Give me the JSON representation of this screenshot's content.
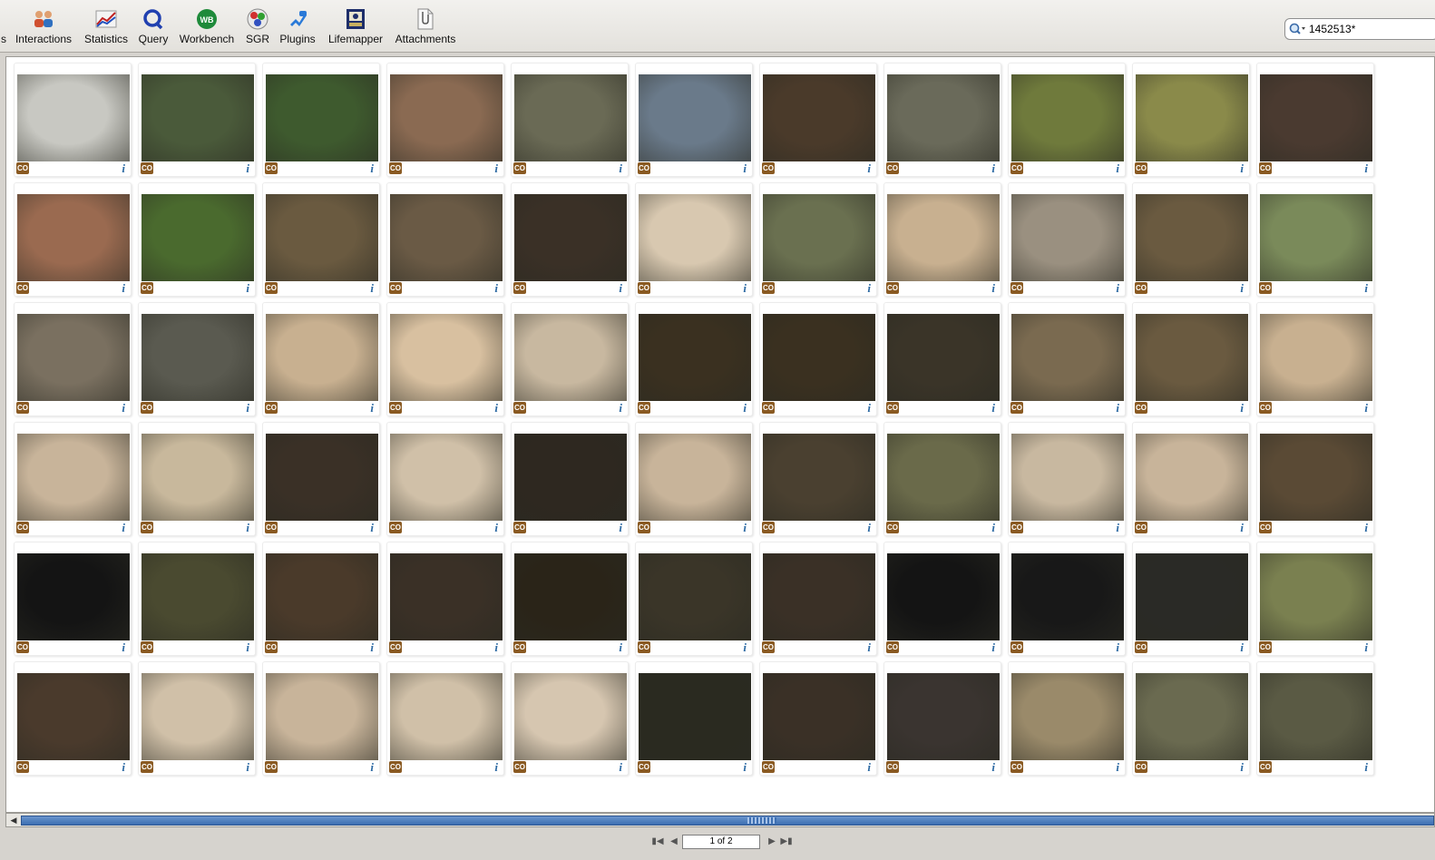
{
  "toolbar": {
    "buttons": [
      {
        "label": "s",
        "icon": "clipped-icon"
      },
      {
        "label": "Interactions",
        "icon": "interactions-icon"
      },
      {
        "label": "Statistics",
        "icon": "statistics-icon"
      },
      {
        "label": "Query",
        "icon": "query-icon"
      },
      {
        "label": "Workbench",
        "icon": "workbench-icon"
      },
      {
        "label": "SGR",
        "icon": "sgr-icon"
      },
      {
        "label": "Plugins",
        "icon": "plugins-icon"
      },
      {
        "label": "Lifemapper",
        "icon": "lifemapper-icon"
      },
      {
        "label": "Attachments",
        "icon": "attachments-icon"
      }
    ]
  },
  "search": {
    "value": "1452513*",
    "icon": "search-icon"
  },
  "grid": {
    "license_badge": "CO",
    "info_glyph": "i",
    "columns": 11,
    "rows": 6,
    "thumbnails": [
      [
        "#c8c8c2",
        "#4a5a3a",
        "#3e5a2e",
        "#8a6a52",
        "#6a6a55",
        "#6a7a8a",
        "#4a3a2a",
        "#6a6a5a",
        "#6f7a3c",
        "#8a8a4a",
        "#4a3a30"
      ],
      [
        "#9a6a50",
        "#4a6a2e",
        "#6a5a40",
        "#6a5a45",
        "#3a3026",
        "#d8c8b0",
        "#6a7050",
        "#c8b090",
        "#9a9080",
        "#6a5a40",
        "#7a8a5a"
      ],
      [
        "#7a7060",
        "#5a5a50",
        "#c8b090",
        "#d8c0a0",
        "#c8b8a0",
        "#3a3020",
        "#3a3020",
        "#3a3428",
        "#7a6a50",
        "#6a5a40",
        "#c8b090"
      ],
      [
        "#c8b49a",
        "#c8b89c",
        "#3a3026",
        "#d0c0a8",
        "#2e2820",
        "#c8b49a",
        "#4a4030",
        "#6a6a4a",
        "#c8b8a0",
        "#c8b49a",
        "#5a4a35"
      ],
      [
        "#141414",
        "#4a4a30",
        "#4a3a2a",
        "#3a3026",
        "#2a2418",
        "#3a3528",
        "#3a3026",
        "#141414",
        "#181818",
        "#2a2a26",
        "#7a8050"
      ],
      [
        "#4a3a2c",
        "#d0c0a8",
        "#c8b49a",
        "#d0c0a8",
        "#d6c6b0",
        "#2a2a20",
        "#3a3026",
        "#3a3430",
        "#9a8a6a",
        "#6a6a50",
        "#5a5a44"
      ]
    ]
  },
  "pager": {
    "page_text": "1 of 2",
    "first": "first-page",
    "prev": "prev-page",
    "next": "next-page",
    "last": "last-page"
  }
}
